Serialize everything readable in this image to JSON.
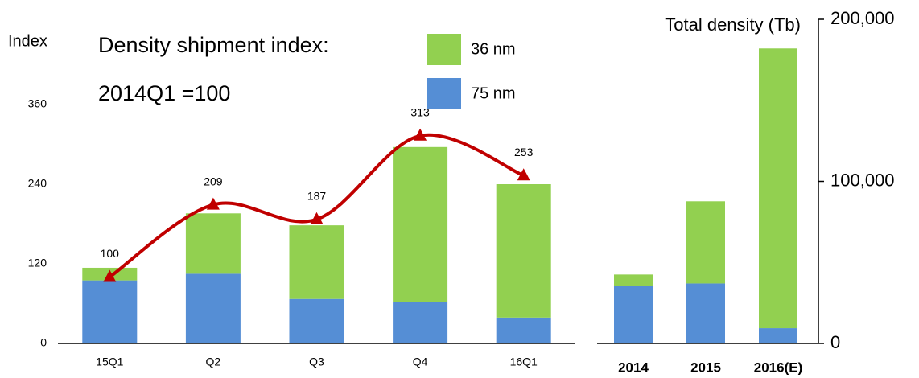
{
  "chart_data": [
    {
      "type": "bar",
      "stacked": true,
      "annotations": [
        "Density shipment index:",
        "2014Q1 =100"
      ],
      "ylabel": "Index",
      "categories": [
        "15Q1",
        "Q2",
        "Q3",
        "Q4",
        "16Q1"
      ],
      "series": [
        {
          "name": "75 nm",
          "color": "#558ed5",
          "values": [
            95,
            105,
            67,
            63,
            39
          ]
        },
        {
          "name": "36 nm",
          "color": "#92d050",
          "values": [
            19,
            91,
            111,
            233,
            201
          ]
        }
      ],
      "line_values": [
        100,
        209,
        187,
        313,
        253
      ],
      "line_color": "#c00000",
      "ylim": [
        0,
        360
      ],
      "yticks": [
        0,
        120,
        240,
        360
      ]
    },
    {
      "type": "bar",
      "stacked": true,
      "ylabel": "Total density (Tb)",
      "categories": [
        "2014",
        "2015",
        "2016(E)"
      ],
      "series": [
        {
          "color": "#558ed5",
          "values": [
            35500,
            37000,
            9400
          ]
        },
        {
          "color": "#92d050",
          "values": [
            7000,
            50700,
            172600
          ]
        }
      ],
      "ylim": [
        0,
        200000
      ],
      "yticks": [
        0,
        {
          "value": 100000,
          "label": "100,000"
        },
        {
          "value": 200000,
          "label": "200,000"
        }
      ]
    }
  ]
}
